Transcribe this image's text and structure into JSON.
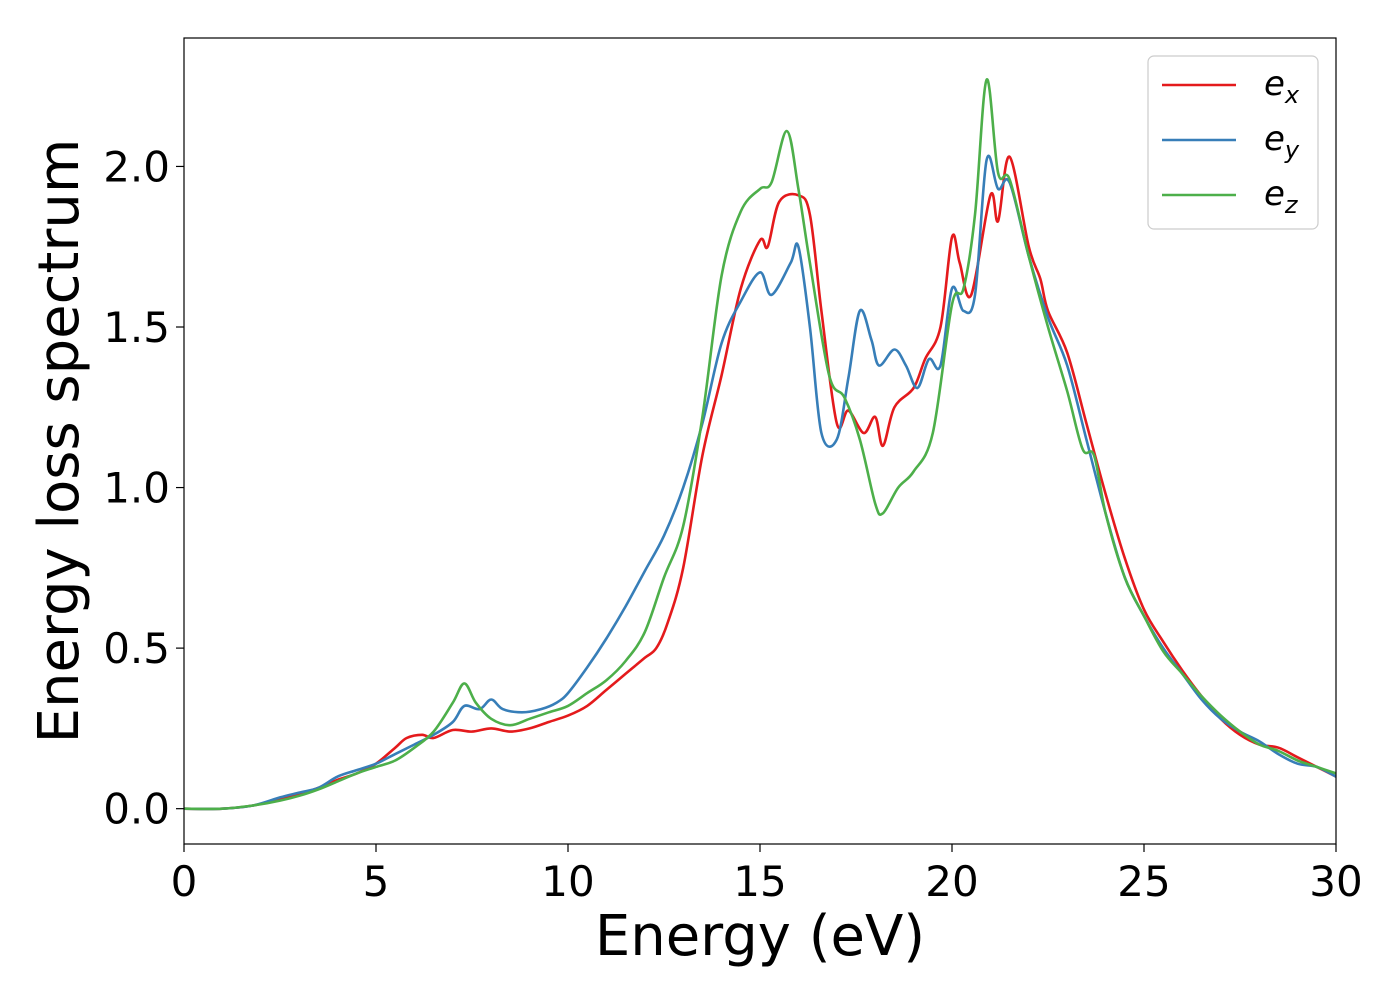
{
  "chart_data": {
    "type": "line",
    "xlabel": "Energy (eV)",
    "ylabel": "Energy loss spectrum",
    "xlim": [
      0,
      30
    ],
    "ylim": [
      -0.11,
      2.4
    ],
    "grid": false,
    "legend_position": "top-right",
    "x_ticks": [
      {
        "value": 0,
        "label": "0"
      },
      {
        "value": 5,
        "label": "5"
      },
      {
        "value": 10,
        "label": "10"
      },
      {
        "value": 15,
        "label": "15"
      },
      {
        "value": 20,
        "label": "20"
      },
      {
        "value": 25,
        "label": "25"
      },
      {
        "value": 30,
        "label": "30"
      }
    ],
    "y_ticks": [
      {
        "value": 0.0,
        "label": "0.0"
      },
      {
        "value": 0.5,
        "label": "0.5"
      },
      {
        "value": 1.0,
        "label": "1.0"
      },
      {
        "value": 1.5,
        "label": "1.5"
      },
      {
        "value": 2.0,
        "label": "2.0"
      }
    ],
    "series": [
      {
        "name": "e_x",
        "label_main": "e",
        "label_sub": "x",
        "color": "#e41a1c",
        "points": [
          [
            0,
            0
          ],
          [
            1,
            0
          ],
          [
            1.8,
            0.01
          ],
          [
            2.5,
            0.03
          ],
          [
            3,
            0.045
          ],
          [
            3.5,
            0.065
          ],
          [
            4,
            0.09
          ],
          [
            4.5,
            0.11
          ],
          [
            5,
            0.14
          ],
          [
            5.5,
            0.19
          ],
          [
            5.8,
            0.22
          ],
          [
            6.2,
            0.23
          ],
          [
            6.5,
            0.22
          ],
          [
            7,
            0.245
          ],
          [
            7.5,
            0.24
          ],
          [
            8,
            0.25
          ],
          [
            8.5,
            0.24
          ],
          [
            9,
            0.25
          ],
          [
            9.5,
            0.27
          ],
          [
            10,
            0.29
          ],
          [
            10.5,
            0.32
          ],
          [
            11,
            0.37
          ],
          [
            11.5,
            0.42
          ],
          [
            12,
            0.47
          ],
          [
            12.3,
            0.5
          ],
          [
            12.6,
            0.58
          ],
          [
            13,
            0.75
          ],
          [
            13.5,
            1.1
          ],
          [
            14,
            1.35
          ],
          [
            14.5,
            1.62
          ],
          [
            15,
            1.77
          ],
          [
            15.2,
            1.75
          ],
          [
            15.5,
            1.89
          ],
          [
            16,
            1.91
          ],
          [
            16.3,
            1.85
          ],
          [
            16.6,
            1.55
          ],
          [
            17,
            1.2
          ],
          [
            17.3,
            1.24
          ],
          [
            17.7,
            1.17
          ],
          [
            18,
            1.22
          ],
          [
            18.2,
            1.13
          ],
          [
            18.5,
            1.25
          ],
          [
            19,
            1.31
          ],
          [
            19.3,
            1.4
          ],
          [
            19.7,
            1.5
          ],
          [
            20,
            1.78
          ],
          [
            20.2,
            1.7
          ],
          [
            20.5,
            1.6
          ],
          [
            21,
            1.91
          ],
          [
            21.2,
            1.83
          ],
          [
            21.5,
            2.03
          ],
          [
            22,
            1.75
          ],
          [
            22.3,
            1.65
          ],
          [
            22.5,
            1.55
          ],
          [
            23,
            1.42
          ],
          [
            23.5,
            1.2
          ],
          [
            24,
            0.98
          ],
          [
            24.5,
            0.78
          ],
          [
            25,
            0.62
          ],
          [
            25.5,
            0.52
          ],
          [
            26,
            0.43
          ],
          [
            26.5,
            0.35
          ],
          [
            27,
            0.28
          ],
          [
            27.5,
            0.23
          ],
          [
            28,
            0.2
          ],
          [
            28.5,
            0.19
          ],
          [
            29,
            0.16
          ],
          [
            29.5,
            0.13
          ],
          [
            30,
            0.1
          ]
        ]
      },
      {
        "name": "e_y",
        "label_main": "e",
        "label_sub": "y",
        "color": "#377eb8",
        "points": [
          [
            0,
            0
          ],
          [
            1,
            0
          ],
          [
            1.8,
            0.01
          ],
          [
            2.5,
            0.035
          ],
          [
            3,
            0.05
          ],
          [
            3.5,
            0.065
          ],
          [
            4,
            0.1
          ],
          [
            4.5,
            0.12
          ],
          [
            5,
            0.14
          ],
          [
            5.5,
            0.17
          ],
          [
            6,
            0.2
          ],
          [
            6.5,
            0.23
          ],
          [
            7,
            0.27
          ],
          [
            7.3,
            0.32
          ],
          [
            7.7,
            0.31
          ],
          [
            8,
            0.34
          ],
          [
            8.3,
            0.31
          ],
          [
            8.8,
            0.3
          ],
          [
            9.3,
            0.31
          ],
          [
            9.7,
            0.33
          ],
          [
            10,
            0.36
          ],
          [
            10.5,
            0.44
          ],
          [
            11,
            0.53
          ],
          [
            11.5,
            0.63
          ],
          [
            12,
            0.74
          ],
          [
            12.5,
            0.85
          ],
          [
            13,
            1.0
          ],
          [
            13.5,
            1.2
          ],
          [
            14,
            1.45
          ],
          [
            14.5,
            1.58
          ],
          [
            15,
            1.67
          ],
          [
            15.3,
            1.6
          ],
          [
            15.8,
            1.7
          ],
          [
            16,
            1.75
          ],
          [
            16.3,
            1.5
          ],
          [
            16.6,
            1.17
          ],
          [
            17,
            1.15
          ],
          [
            17.3,
            1.34
          ],
          [
            17.6,
            1.55
          ],
          [
            17.9,
            1.46
          ],
          [
            18.1,
            1.38
          ],
          [
            18.5,
            1.43
          ],
          [
            18.8,
            1.38
          ],
          [
            19.1,
            1.31
          ],
          [
            19.4,
            1.4
          ],
          [
            19.7,
            1.38
          ],
          [
            20,
            1.62
          ],
          [
            20.3,
            1.55
          ],
          [
            20.6,
            1.6
          ],
          [
            20.9,
            2.02
          ],
          [
            21.2,
            1.93
          ],
          [
            21.5,
            1.95
          ],
          [
            22,
            1.72
          ],
          [
            22.5,
            1.53
          ],
          [
            23,
            1.38
          ],
          [
            23.5,
            1.15
          ],
          [
            24,
            0.92
          ],
          [
            24.5,
            0.72
          ],
          [
            25,
            0.6
          ],
          [
            25.5,
            0.5
          ],
          [
            26,
            0.42
          ],
          [
            26.5,
            0.34
          ],
          [
            27,
            0.28
          ],
          [
            27.5,
            0.24
          ],
          [
            28,
            0.21
          ],
          [
            28.5,
            0.17
          ],
          [
            29,
            0.14
          ],
          [
            29.5,
            0.13
          ],
          [
            30,
            0.1
          ]
        ]
      },
      {
        "name": "e_z",
        "label_main": "e",
        "label_sub": "z",
        "color": "#4daf4a",
        "points": [
          [
            0,
            0
          ],
          [
            1,
            0
          ],
          [
            1.8,
            0.01
          ],
          [
            2.5,
            0.025
          ],
          [
            3,
            0.04
          ],
          [
            3.5,
            0.06
          ],
          [
            4,
            0.085
          ],
          [
            4.5,
            0.11
          ],
          [
            5,
            0.13
          ],
          [
            5.5,
            0.15
          ],
          [
            6,
            0.19
          ],
          [
            6.5,
            0.24
          ],
          [
            7,
            0.33
          ],
          [
            7.3,
            0.39
          ],
          [
            7.6,
            0.33
          ],
          [
            8,
            0.28
          ],
          [
            8.5,
            0.26
          ],
          [
            9,
            0.28
          ],
          [
            9.5,
            0.3
          ],
          [
            10,
            0.32
          ],
          [
            10.5,
            0.36
          ],
          [
            11,
            0.4
          ],
          [
            11.5,
            0.46
          ],
          [
            12,
            0.55
          ],
          [
            12.5,
            0.72
          ],
          [
            13,
            0.88
          ],
          [
            13.5,
            1.22
          ],
          [
            14,
            1.66
          ],
          [
            14.5,
            1.86
          ],
          [
            15,
            1.93
          ],
          [
            15.3,
            1.95
          ],
          [
            15.7,
            2.11
          ],
          [
            16,
            1.93
          ],
          [
            16.3,
            1.7
          ],
          [
            16.8,
            1.35
          ],
          [
            17.2,
            1.28
          ],
          [
            17.6,
            1.15
          ],
          [
            18,
            0.95
          ],
          [
            18.2,
            0.92
          ],
          [
            18.6,
            1.0
          ],
          [
            19,
            1.05
          ],
          [
            19.5,
            1.17
          ],
          [
            20,
            1.57
          ],
          [
            20.3,
            1.62
          ],
          [
            20.6,
            1.85
          ],
          [
            20.9,
            2.27
          ],
          [
            21.2,
            1.98
          ],
          [
            21.5,
            1.96
          ],
          [
            22,
            1.72
          ],
          [
            22.5,
            1.5
          ],
          [
            23,
            1.3
          ],
          [
            23.4,
            1.12
          ],
          [
            23.7,
            1.1
          ],
          [
            24,
            0.92
          ],
          [
            24.5,
            0.72
          ],
          [
            25,
            0.6
          ],
          [
            25.5,
            0.49
          ],
          [
            26,
            0.42
          ],
          [
            26.5,
            0.35
          ],
          [
            27,
            0.29
          ],
          [
            27.5,
            0.24
          ],
          [
            28,
            0.2
          ],
          [
            28.5,
            0.18
          ],
          [
            29,
            0.15
          ],
          [
            29.5,
            0.13
          ],
          [
            30,
            0.11
          ]
        ]
      }
    ]
  }
}
